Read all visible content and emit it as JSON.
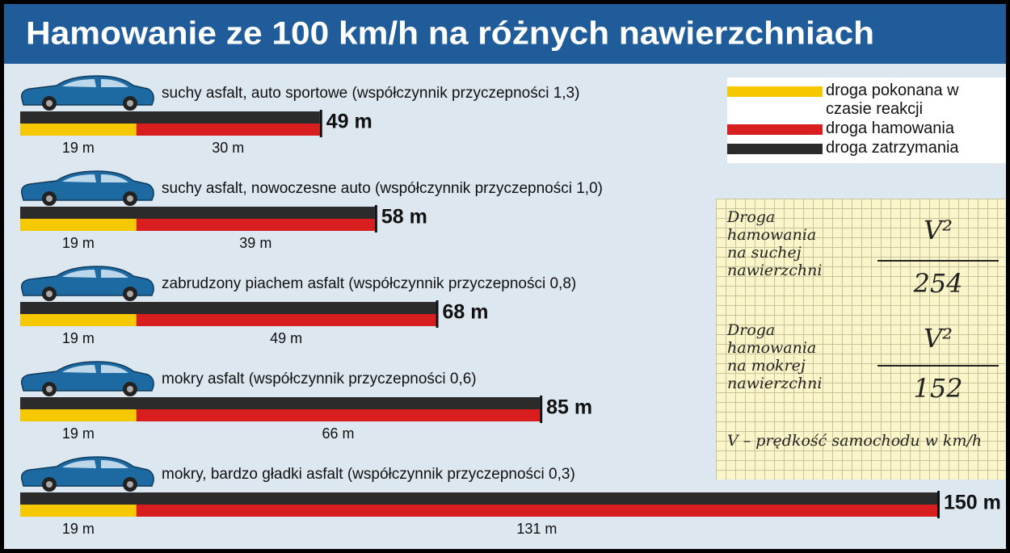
{
  "chart_data": {
    "type": "bar",
    "orientation": "horizontal",
    "stacked": true,
    "title": "Hamowanie ze 100 km/h na różnych nawierzchniach",
    "categories": [
      "suchy asfalt, auto sportowe (współczynnik przyczepności 1,3)",
      "suchy asfalt, nowoczesne auto (współczynnik przyczepności 1,0)",
      "zabrudzony piachem asfalt (współczynnik przyczepności 0,8)",
      "mokry asfalt (współczynnik przyczepności 0,6)",
      "mokry, bardzo gładki asfalt (współczynnik przyczepności 0,3)"
    ],
    "series": [
      {
        "name": "droga pokonana w czasie reakcji",
        "color": "#f5c800",
        "values": [
          19,
          19,
          19,
          19,
          19
        ],
        "value_labels": [
          "19 m",
          "19 m",
          "19 m",
          "19 m",
          "19 m"
        ]
      },
      {
        "name": "droga hamowania",
        "color": "#d81e1e",
        "values": [
          30,
          39,
          49,
          66,
          131
        ],
        "value_labels": [
          "30 m",
          "39 m",
          "49 m",
          "66 m",
          "131 m"
        ]
      },
      {
        "name": "droga zatrzymania",
        "color": "#2b2b2b",
        "values": [
          49,
          58,
          68,
          85,
          150
        ],
        "value_labels": [
          "49 m",
          "58 m",
          "68 m",
          "85 m",
          "150 m"
        ]
      }
    ],
    "note": {
      "dry_label": "Droga hamowania na suchej nawierzchni",
      "dry_numerator": "V²",
      "dry_denominator": "254",
      "wet_label": "Droga hamowania na mokrej nawierzchni",
      "wet_numerator": "V²",
      "wet_denominator": "152",
      "footnote": "V – prędkość samochodu w km/h"
    }
  }
}
